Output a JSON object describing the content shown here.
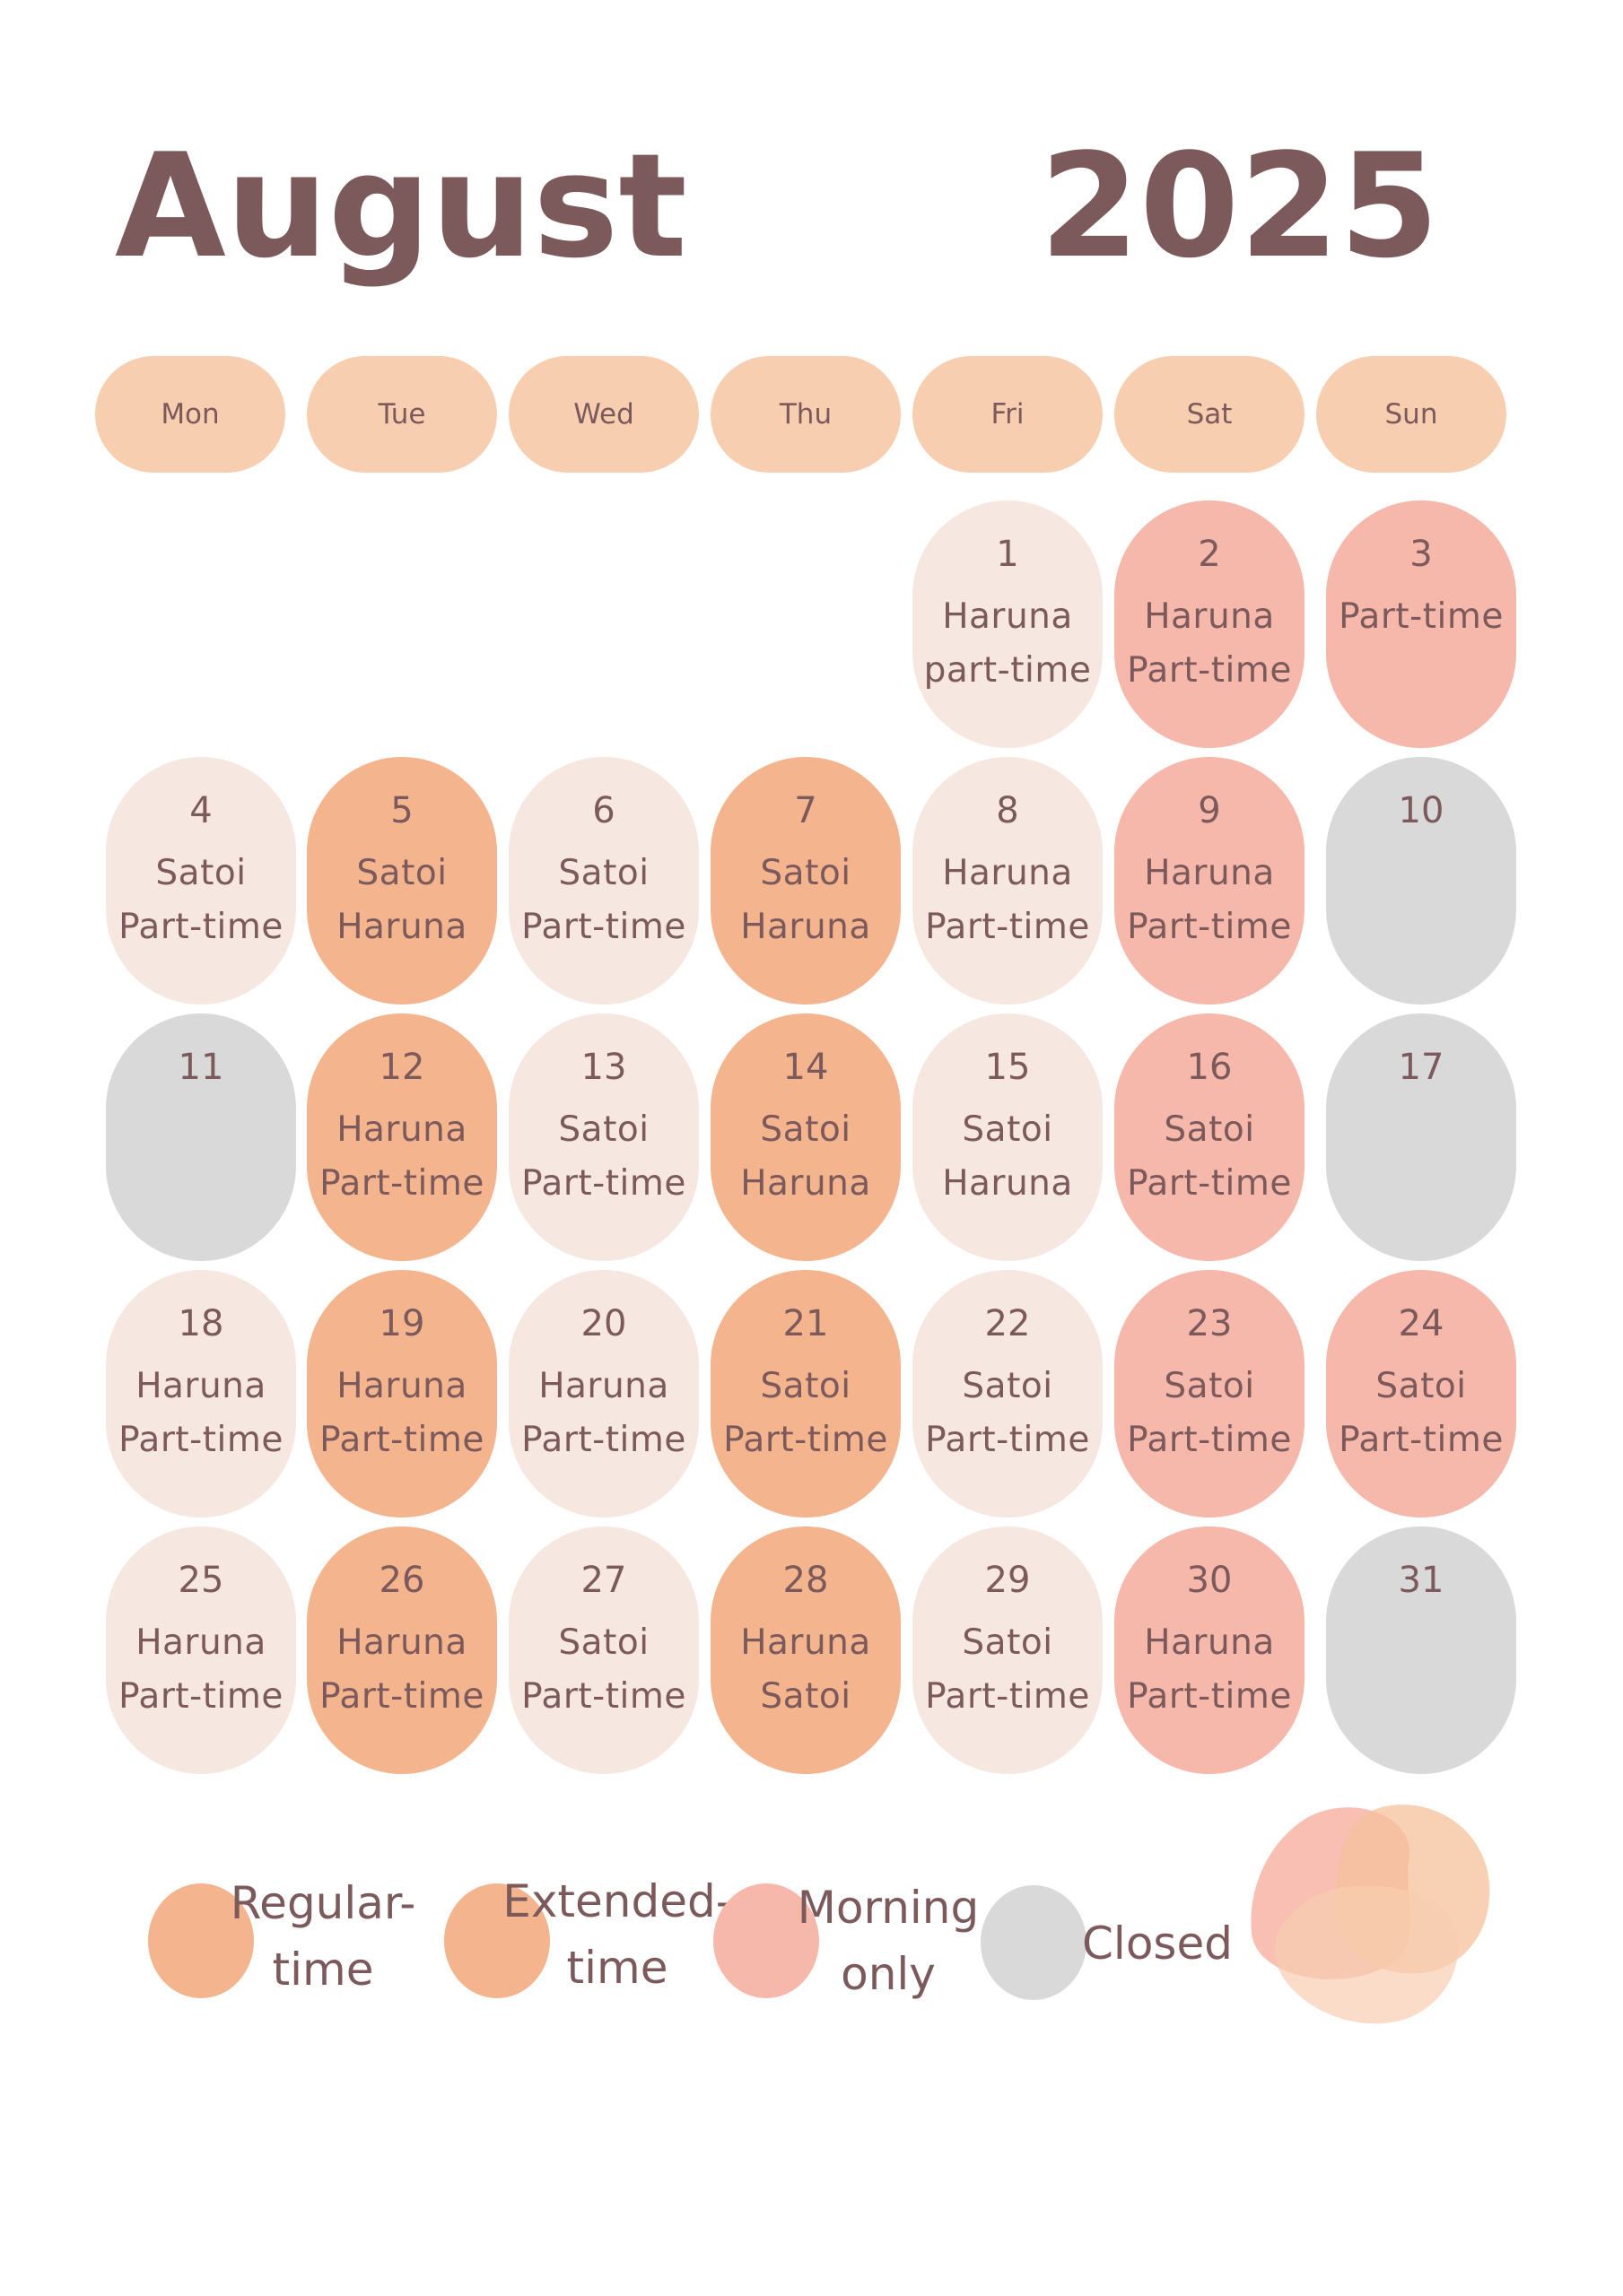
{
  "header": {
    "month": "August",
    "year": "2025"
  },
  "weekdays": [
    "Mon",
    "Tue",
    "Wed",
    "Thu",
    "Fri",
    "Sat",
    "Sun"
  ],
  "days": [
    {
      "num": "1",
      "lines": [
        "Haruna",
        "part-time"
      ],
      "style": "light"
    },
    {
      "num": "2",
      "lines": [
        "Haruna",
        "Part-time"
      ],
      "style": "pink"
    },
    {
      "num": "3",
      "lines": [
        "Part-time"
      ],
      "style": "pink"
    },
    {
      "num": "4",
      "lines": [
        "Satoi",
        "Part-time"
      ],
      "style": "light"
    },
    {
      "num": "5",
      "lines": [
        "Satoi",
        "Haruna"
      ],
      "style": "orange"
    },
    {
      "num": "6",
      "lines": [
        "Satoi",
        "Part-time"
      ],
      "style": "light"
    },
    {
      "num": "7",
      "lines": [
        "Satoi",
        "Haruna"
      ],
      "style": "orange"
    },
    {
      "num": "8",
      "lines": [
        "Haruna",
        "Part-time"
      ],
      "style": "light"
    },
    {
      "num": "9",
      "lines": [
        "Haruna",
        "Part-time"
      ],
      "style": "pink"
    },
    {
      "num": "10",
      "lines": [],
      "style": "gray"
    },
    {
      "num": "11",
      "lines": [],
      "style": "gray"
    },
    {
      "num": "12",
      "lines": [
        "Haruna",
        "Part-time"
      ],
      "style": "orange"
    },
    {
      "num": "13",
      "lines": [
        "Satoi",
        "Part-time"
      ],
      "style": "light"
    },
    {
      "num": "14",
      "lines": [
        "Satoi",
        "Haruna"
      ],
      "style": "orange"
    },
    {
      "num": "15",
      "lines": [
        "Satoi",
        "Haruna"
      ],
      "style": "light"
    },
    {
      "num": "16",
      "lines": [
        "Satoi",
        "Part-time"
      ],
      "style": "pink"
    },
    {
      "num": "17",
      "lines": [],
      "style": "gray"
    },
    {
      "num": "18",
      "lines": [
        "Haruna",
        "Part-time"
      ],
      "style": "light"
    },
    {
      "num": "19",
      "lines": [
        "Haruna",
        "Part-time"
      ],
      "style": "orange"
    },
    {
      "num": "20",
      "lines": [
        "Haruna",
        "Part-time"
      ],
      "style": "light"
    },
    {
      "num": "21",
      "lines": [
        "Satoi",
        "Part-time"
      ],
      "style": "orange"
    },
    {
      "num": "22",
      "lines": [
        "Satoi",
        "Part-time"
      ],
      "style": "light"
    },
    {
      "num": "23",
      "lines": [
        "Satoi",
        "Part-time"
      ],
      "style": "pink"
    },
    {
      "num": "24",
      "lines": [
        "Satoi",
        "Part-time"
      ],
      "style": "pink"
    },
    {
      "num": "25",
      "lines": [
        "Haruna",
        "Part-time"
      ],
      "style": "light"
    },
    {
      "num": "26",
      "lines": [
        "Haruna",
        "Part-time"
      ],
      "style": "orange"
    },
    {
      "num": "27",
      "lines": [
        "Satoi",
        "Part-time"
      ],
      "style": "light"
    },
    {
      "num": "28",
      "lines": [
        "Haruna",
        "Satoi"
      ],
      "style": "orange"
    },
    {
      "num": "29",
      "lines": [
        "Satoi",
        "Part-time"
      ],
      "style": "light"
    },
    {
      "num": "30",
      "lines": [
        "Haruna",
        "Part-time"
      ],
      "style": "pink"
    },
    {
      "num": "31",
      "lines": [],
      "style": "gray"
    }
  ],
  "legend": [
    {
      "lines": [
        "Regular-",
        "time"
      ],
      "color": "#f3b48e"
    },
    {
      "lines": [
        "Extended-",
        "time"
      ],
      "color": "#f3b48e"
    },
    {
      "lines": [
        "Morning",
        "only"
      ],
      "color": "#f5b8aa"
    },
    {
      "lines": [
        "Closed"
      ],
      "color": "#d9d9d9"
    }
  ],
  "colors": {
    "text": "#7c5a5c",
    "weekday_pill": "#f8ceb0",
    "light": "#f6e8e0",
    "orange": "#f3b48e",
    "pink": "#f5b8aa",
    "gray": "#d9d9d9"
  }
}
